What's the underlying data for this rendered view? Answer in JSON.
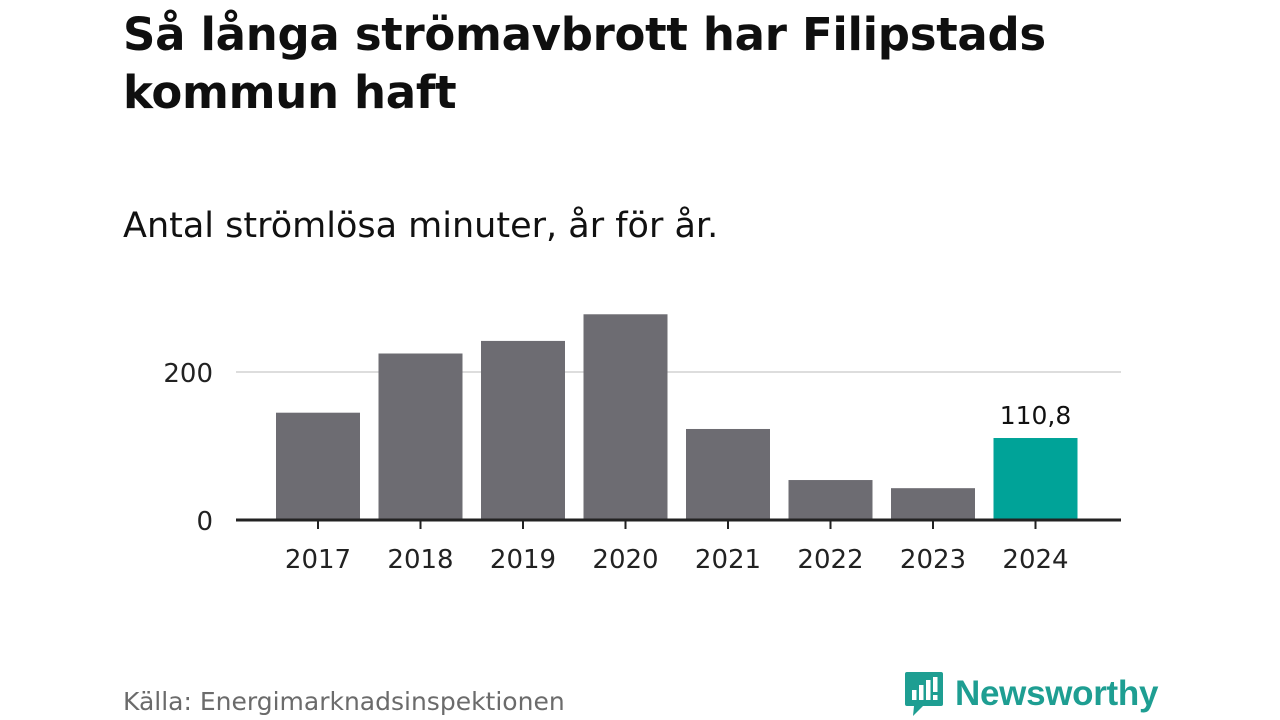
{
  "title": "Så långa strömavbrott har Filipstads kommun haft",
  "subtitle": "Antal strömlösa minuter, år för år.",
  "source": "Källa: Energimarknadsinspektionen",
  "brand": {
    "name": "Newsworthy",
    "color": "#1e9e92",
    "icon": "newsworthy-logo-icon"
  },
  "colors": {
    "bar": "#6d6c72",
    "highlight": "#00a398",
    "grid": "#dddddd",
    "axis": "#222222"
  },
  "chart_data": {
    "type": "bar",
    "categories": [
      "2017",
      "2018",
      "2019",
      "2020",
      "2021",
      "2022",
      "2023",
      "2024"
    ],
    "values": [
      145,
      225,
      242,
      278,
      123,
      54,
      43,
      110.8
    ],
    "highlight_index": 7,
    "data_labels": [
      {
        "index": 7,
        "text": "110,8"
      }
    ],
    "yticks": [
      0,
      200
    ],
    "ylim": [
      0,
      280
    ],
    "grid": true,
    "title": "Antal strömlösa minuter, år för år.",
    "xlabel": "",
    "ylabel": ""
  }
}
